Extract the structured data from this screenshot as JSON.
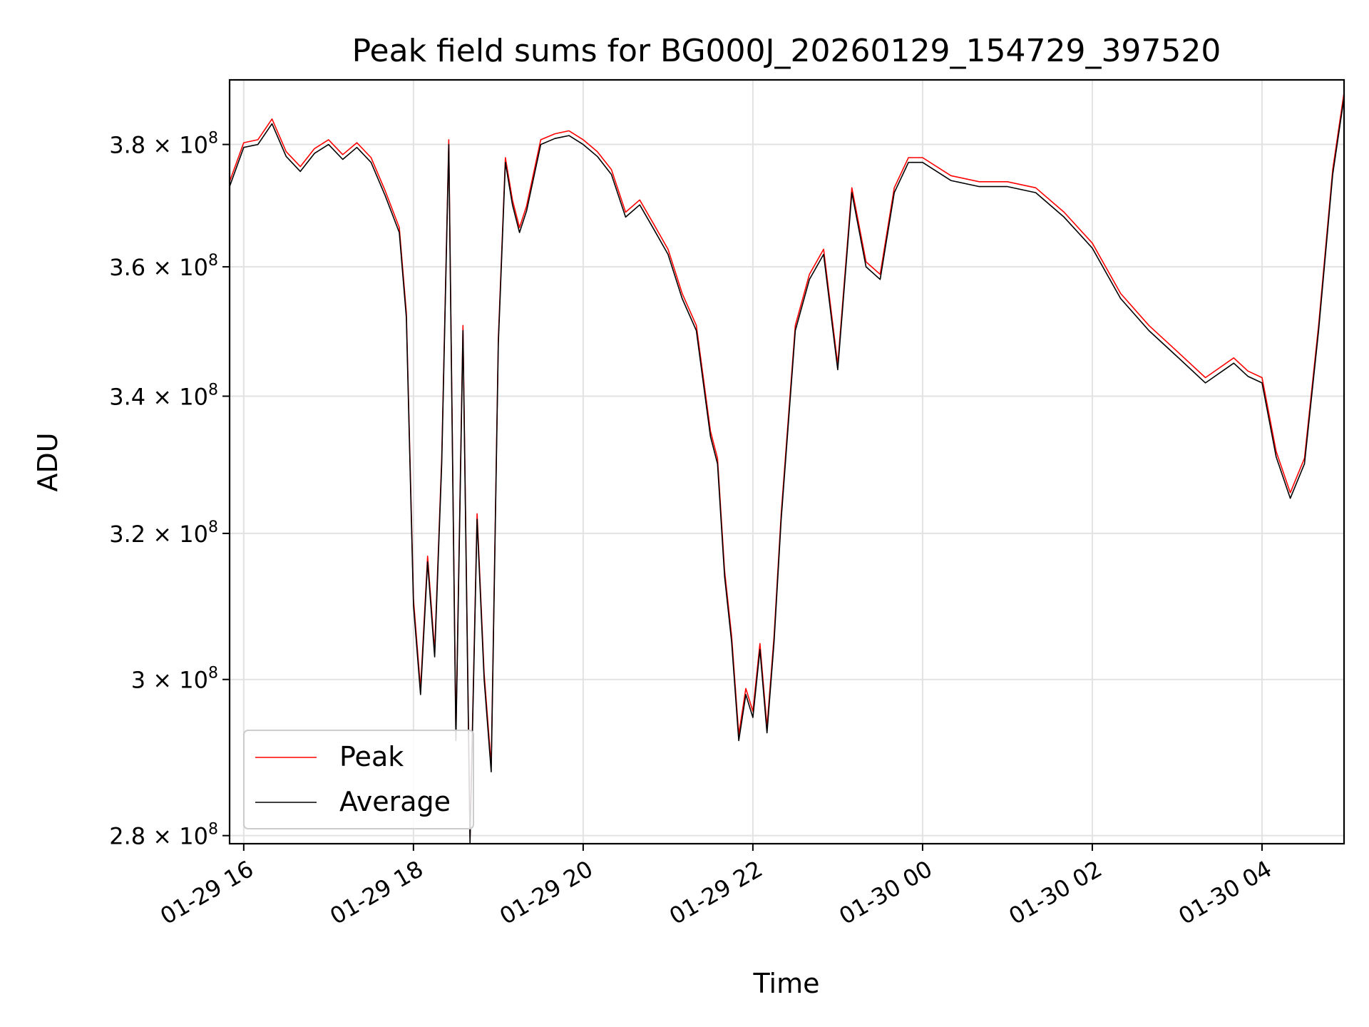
{
  "chart_data": {
    "type": "line",
    "title": "Peak field sums for BG000J_20260129_154729_397520",
    "xlabel": "Time",
    "ylabel": "ADU",
    "yscale": "log",
    "grid": true,
    "legend_position": "lower-left",
    "xlim": [
      "01-29 15:50",
      "01-30 04:58"
    ],
    "ylim": [
      279000000,
      391000000
    ],
    "x_ticks": [
      {
        "x": "01-29 16:00",
        "label": "01-29 16"
      },
      {
        "x": "01-29 18:00",
        "label": "01-29 18"
      },
      {
        "x": "01-29 20:00",
        "label": "01-29 20"
      },
      {
        "x": "01-29 22:00",
        "label": "01-29 22"
      },
      {
        "x": "01-30 00:00",
        "label": "01-30 00"
      },
      {
        "x": "01-30 02:00",
        "label": "01-30 02"
      },
      {
        "x": "01-30 04:00",
        "label": "01-30 04"
      }
    ],
    "y_ticks": [
      {
        "value": 280000000,
        "mantissa": "2.8",
        "base": "10",
        "exponent": "8"
      },
      {
        "value": 300000000,
        "mantissa": "3",
        "base": "10",
        "exponent": "8"
      },
      {
        "value": 320000000,
        "mantissa": "3.2",
        "base": "10",
        "exponent": "8"
      },
      {
        "value": 340000000,
        "mantissa": "3.4",
        "base": "10",
        "exponent": "8"
      },
      {
        "value": 360000000,
        "mantissa": "3.6",
        "base": "10",
        "exponent": "8"
      },
      {
        "value": 380000000,
        "mantissa": "3.8",
        "base": "10",
        "exponent": "8"
      }
    ],
    "series": [
      {
        "name": "Peak",
        "color": "#ff0000",
        "offset": 800000
      },
      {
        "name": "Average",
        "color": "#000000",
        "offset": 0
      }
    ],
    "x": [
      "01-29 15:50",
      "01-29 16:00",
      "01-29 16:10",
      "01-29 16:20",
      "01-29 16:30",
      "01-29 16:40",
      "01-29 16:50",
      "01-29 17:00",
      "01-29 17:10",
      "01-29 17:20",
      "01-29 17:30",
      "01-29 17:40",
      "01-29 17:50",
      "01-29 17:55",
      "01-29 18:00",
      "01-29 18:05",
      "01-29 18:10",
      "01-29 18:15",
      "01-29 18:20",
      "01-29 18:25",
      "01-29 18:30",
      "01-29 18:35",
      "01-29 18:40",
      "01-29 18:45",
      "01-29 18:50",
      "01-29 18:55",
      "01-29 19:00",
      "01-29 19:05",
      "01-29 19:10",
      "01-29 19:15",
      "01-29 19:20",
      "01-29 19:30",
      "01-29 19:40",
      "01-29 19:50",
      "01-29 20:00",
      "01-29 20:10",
      "01-29 20:20",
      "01-29 20:30",
      "01-29 20:40",
      "01-29 20:50",
      "01-29 21:00",
      "01-29 21:10",
      "01-29 21:20",
      "01-29 21:30",
      "01-29 21:35",
      "01-29 21:40",
      "01-29 21:45",
      "01-29 21:50",
      "01-29 21:55",
      "01-29 22:00",
      "01-29 22:05",
      "01-29 22:10",
      "01-29 22:15",
      "01-29 22:20",
      "01-29 22:30",
      "01-29 22:40",
      "01-29 22:50",
      "01-29 23:00",
      "01-29 23:10",
      "01-29 23:20",
      "01-29 23:30",
      "01-29 23:40",
      "01-29 23:50",
      "01-30 00:00",
      "01-30 00:20",
      "01-30 00:40",
      "01-30 01:00",
      "01-30 01:20",
      "01-30 01:40",
      "01-30 02:00",
      "01-30 02:20",
      "01-30 02:40",
      "01-30 03:00",
      "01-30 03:20",
      "01-30 03:40",
      "01-30 03:50",
      "01-30 04:00",
      "01-30 04:10",
      "01-30 04:20",
      "01-30 04:30",
      "01-30 04:40",
      "01-30 04:50",
      "01-30 04:58"
    ],
    "values": [
      373000000,
      379500000,
      380000000,
      383500000,
      378000000,
      375500000,
      378500000,
      380000000,
      377500000,
      379500000,
      377000000,
      371500000,
      365500000,
      352000000,
      310000000,
      298000000,
      316000000,
      303000000,
      330000000,
      380000000,
      292000000,
      350000000,
      279000000,
      322000000,
      300000000,
      288000000,
      348000000,
      377000000,
      370000000,
      365500000,
      369000000,
      380000000,
      381000000,
      381500000,
      380000000,
      378000000,
      375000000,
      368000000,
      370000000,
      366000000,
      362000000,
      355000000,
      350000000,
      334000000,
      330000000,
      314000000,
      305000000,
      292000000,
      298000000,
      295000000,
      304000000,
      293000000,
      305000000,
      322000000,
      350000000,
      358000000,
      362000000,
      344000000,
      372000000,
      360000000,
      358000000,
      372000000,
      377000000,
      377000000,
      374000000,
      373000000,
      373000000,
      372000000,
      368000000,
      363000000,
      355000000,
      350000000,
      346000000,
      342000000,
      345000000,
      343000000,
      342000000,
      331000000,
      325000000,
      330000000,
      350000000,
      375000000,
      388000000
    ]
  }
}
